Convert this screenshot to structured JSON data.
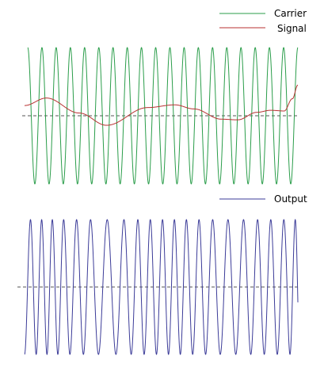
{
  "chart_data": [
    {
      "type": "line",
      "title": "",
      "legend": {
        "placement": "top-right"
      },
      "grid": false,
      "baseline": {
        "y": 0,
        "style": "dashed"
      },
      "x_range": [
        0,
        1
      ],
      "ylim": [
        -1.1,
        1.1
      ],
      "series": [
        {
          "name": "Carrier",
          "color": "#2a9d4a",
          "kind": "sinusoid",
          "cycles": 19,
          "amplitude": 1.0
        },
        {
          "name": "Signal",
          "color": "#b83232",
          "kind": "smooth",
          "x": [
            0,
            0.08,
            0.2,
            0.3,
            0.45,
            0.55,
            0.62,
            0.72,
            0.78,
            0.85,
            0.9,
            0.95,
            0.98,
            1.0
          ],
          "y": [
            0.15,
            0.26,
            0.04,
            -0.14,
            0.12,
            0.16,
            0.1,
            -0.05,
            -0.06,
            0.05,
            0.08,
            0.07,
            0.25,
            0.45
          ]
        }
      ]
    },
    {
      "type": "line",
      "title": "",
      "legend": {
        "placement": "top-right"
      },
      "grid": false,
      "baseline": {
        "y": 0,
        "style": "dashed"
      },
      "x_range": [
        0,
        1
      ],
      "ylim": [
        -1.1,
        1.1
      ],
      "series": [
        {
          "name": "Output",
          "color": "#3b3b98",
          "kind": "fm",
          "base_cycles": 19,
          "deviation": 26,
          "signal_ref": "Signal"
        }
      ]
    }
  ]
}
